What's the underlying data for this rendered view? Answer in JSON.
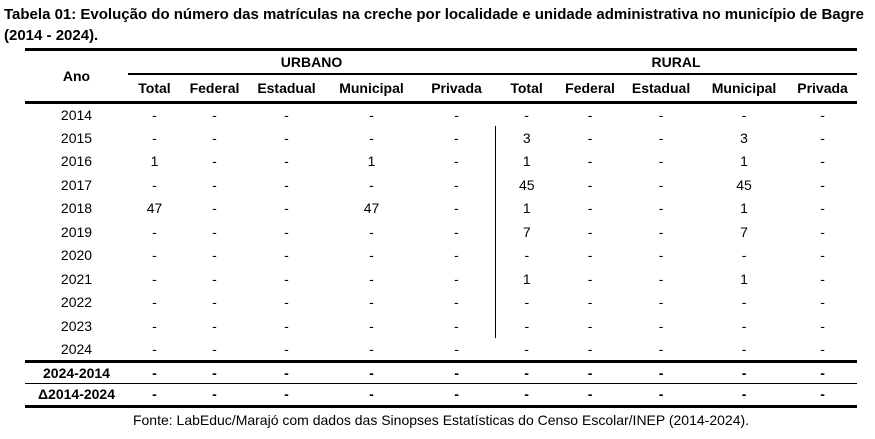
{
  "title": "Tabela 01: Evolução do número das matrículas na creche por localidade e unidade administrativa no município de Bagre (2014 - 2024).",
  "footer": "Fonte: LabEduc/Marajó com dados das Sinopses Estatísticas do Censo Escolar/INEP (2014-2024).",
  "table": {
    "year_header": "Ano",
    "groups": [
      {
        "label": "URBANO",
        "columns": [
          "Total",
          "Federal",
          "Estadual",
          "Municipal",
          "Privada"
        ]
      },
      {
        "label": "RURAL",
        "columns": [
          "Total",
          "Federal",
          "Estadual",
          "Municipal",
          "Privada"
        ]
      }
    ],
    "rows": [
      {
        "label": "2014",
        "urbano": [
          "-",
          "-",
          "-",
          "-",
          "-"
        ],
        "rural": [
          "-",
          "-",
          "-",
          "-",
          "-"
        ],
        "rural_divider": false
      },
      {
        "label": "2015",
        "urbano": [
          "-",
          "-",
          "-",
          "-",
          "-"
        ],
        "rural": [
          "3",
          "-",
          "-",
          "3",
          "-"
        ],
        "rural_divider": true
      },
      {
        "label": "2016",
        "urbano": [
          "1",
          "-",
          "-",
          "1",
          "-"
        ],
        "rural": [
          "1",
          "-",
          "-",
          "1",
          "-"
        ],
        "rural_divider": true
      },
      {
        "label": "2017",
        "urbano": [
          "-",
          "-",
          "-",
          "-",
          "-"
        ],
        "rural": [
          "45",
          "-",
          "-",
          "45",
          "-"
        ],
        "rural_divider": true
      },
      {
        "label": "2018",
        "urbano": [
          "47",
          "-",
          "-",
          "47",
          "-"
        ],
        "rural": [
          "1",
          "-",
          "-",
          "1",
          "-"
        ],
        "rural_divider": true
      },
      {
        "label": "2019",
        "urbano": [
          "-",
          "-",
          "-",
          "-",
          "-"
        ],
        "rural": [
          "7",
          "-",
          "-",
          "7",
          "-"
        ],
        "rural_divider": true
      },
      {
        "label": "2020",
        "urbano": [
          "-",
          "-",
          "-",
          "-",
          "-"
        ],
        "rural": [
          "-",
          "-",
          "-",
          "-",
          "-"
        ],
        "rural_divider": true
      },
      {
        "label": "2021",
        "urbano": [
          "-",
          "-",
          "-",
          "-",
          "-"
        ],
        "rural": [
          "1",
          "-",
          "-",
          "1",
          "-"
        ],
        "rural_divider": true
      },
      {
        "label": "2022",
        "urbano": [
          "-",
          "-",
          "-",
          "-",
          "-"
        ],
        "rural": [
          "-",
          "-",
          "-",
          "-",
          "-"
        ],
        "rural_divider": true
      },
      {
        "label": "2023",
        "urbano": [
          "-",
          "-",
          "-",
          "-",
          "-"
        ],
        "rural": [
          "-",
          "-",
          "-",
          "-",
          "-"
        ],
        "rural_divider": true
      },
      {
        "label": "2024",
        "urbano": [
          "-",
          "-",
          "-",
          "-",
          "-"
        ],
        "rural": [
          "-",
          "-",
          "-",
          "-",
          "-"
        ],
        "rural_divider": false
      }
    ],
    "summary_rows": [
      {
        "label": "2024-2014",
        "urbano": [
          "-",
          "-",
          "-",
          "-",
          "-"
        ],
        "rural": [
          "-",
          "-",
          "-",
          "-",
          "-"
        ]
      },
      {
        "label": "Δ2014-2024",
        "urbano": [
          "-",
          "-",
          "-",
          "-",
          "-"
        ],
        "rural": [
          "-",
          "-",
          "-",
          "-",
          "-"
        ]
      }
    ]
  }
}
